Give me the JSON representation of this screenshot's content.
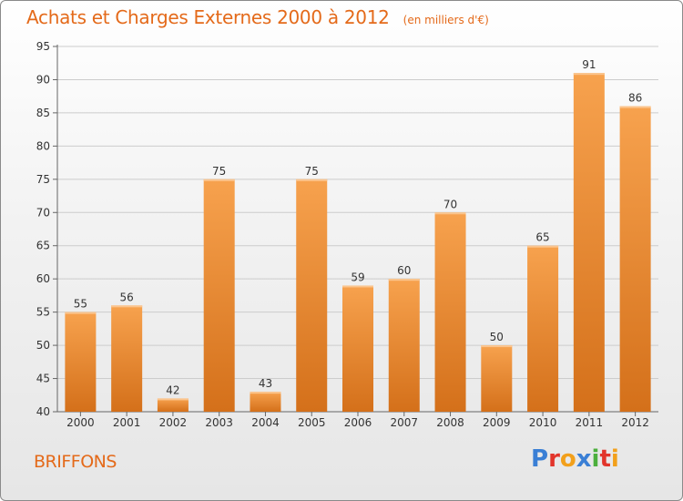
{
  "title": "Achats et Charges Externes 2000 à 2012",
  "subtitle": "(en milliers d'€)",
  "commune": "BRIFFONS",
  "logo": {
    "text": "Proxiti",
    "letters": [
      {
        "char": "P",
        "color": "#3a7fd5"
      },
      {
        "char": "r",
        "color": "#e2352b"
      },
      {
        "char": "o",
        "color": "#f2a01b"
      },
      {
        "char": "x",
        "color": "#3a7fd5"
      },
      {
        "char": "i",
        "color": "#4caf3d"
      },
      {
        "char": "t",
        "color": "#e2352b"
      },
      {
        "char": "i",
        "color": "#f2a01b"
      }
    ]
  },
  "colors": {
    "accent": "#e46a1a",
    "bar_top": "#f7a24e",
    "bar_bottom": "#d4701a",
    "grid": "#cccccc",
    "axis": "#666666"
  },
  "chart_data": {
    "type": "bar",
    "categories": [
      "2000",
      "2001",
      "2002",
      "2003",
      "2004",
      "2005",
      "2006",
      "2007",
      "2008",
      "2009",
      "2010",
      "2011",
      "2012"
    ],
    "values": [
      55,
      56,
      42,
      75,
      43,
      75,
      59,
      60,
      70,
      50,
      65,
      91,
      86
    ],
    "title": "Achats et Charges Externes 2000 à 2012",
    "xlabel": "",
    "ylabel": "",
    "ylim": [
      40,
      95
    ],
    "yticks": [
      40,
      45,
      50,
      55,
      60,
      65,
      70,
      75,
      80,
      85,
      90,
      95
    ],
    "grid": true,
    "data_labels": true
  }
}
